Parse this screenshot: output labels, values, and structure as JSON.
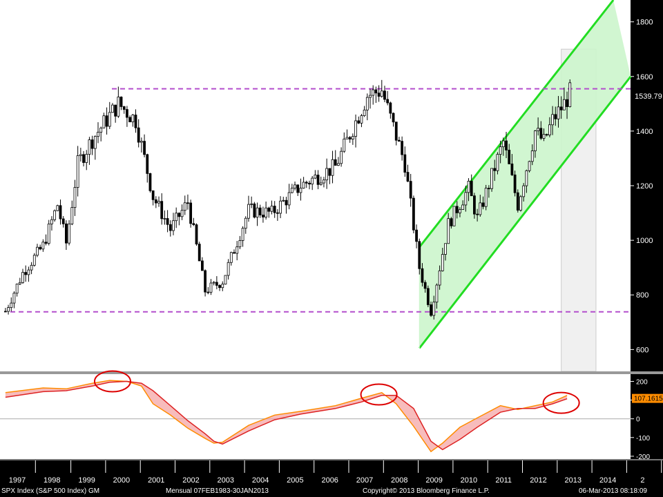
{
  "chart_data": [
    {
      "type": "candlestick",
      "frequency": "monthly",
      "series": [
        {
          "name": "",
          "ohlc_sketch": [
            {
              "date": "1996-12",
              "value": 740
            },
            {
              "date": "1997-06",
              "value": 880
            },
            {
              "date": "1998-01",
              "value": 980
            },
            {
              "date": "1998-06",
              "value": 1130
            },
            {
              "date": "1998-09",
              "value": 990
            },
            {
              "date": "1999-01",
              "value": 1280
            },
            {
              "date": "1999-06",
              "value": 1370
            },
            {
              "date": "2000-03",
              "value": 1500
            },
            {
              "date": "2000-09",
              "value": 1440
            },
            {
              "date": "2001-03",
              "value": 1160
            },
            {
              "date": "2001-09",
              "value": 1040
            },
            {
              "date": "2002-03",
              "value": 1140
            },
            {
              "date": "2002-09",
              "value": 815
            },
            {
              "date": "2003-03",
              "value": 850
            },
            {
              "date": "2003-12",
              "value": 1110
            },
            {
              "date": "2004-08",
              "value": 1100
            },
            {
              "date": "2005-06",
              "value": 1200
            },
            {
              "date": "2006-06",
              "value": 1270
            },
            {
              "date": "2007-05",
              "value": 1530
            },
            {
              "date": "2007-10",
              "value": 1550
            },
            {
              "date": "2008-06",
              "value": 1280
            },
            {
              "date": "2008-11",
              "value": 900
            },
            {
              "date": "2009-03",
              "value": 740
            },
            {
              "date": "2009-09",
              "value": 1060
            },
            {
              "date": "2010-04",
              "value": 1190
            },
            {
              "date": "2010-07",
              "value": 1080
            },
            {
              "date": "2011-04",
              "value": 1360
            },
            {
              "date": "2011-09",
              "value": 1130
            },
            {
              "date": "2012-03",
              "value": 1400
            },
            {
              "date": "2012-06",
              "value": 1360
            },
            {
              "date": "2012-09",
              "value": 1440
            },
            {
              "date": "2013-01",
              "value": 1500
            },
            {
              "date": "2013-03",
              "value": 1539.79
            }
          ]
        }
      ],
      "x_ticks": [
        "1997",
        "1998",
        "1999",
        "2000",
        "2001",
        "2002",
        "2003",
        "2004",
        "2005",
        "2006",
        "2007",
        "2008",
        "2009",
        "2010",
        "2011",
        "2012",
        "2013",
        "2014",
        "2"
      ],
      "y_ticks": [
        600,
        800,
        1000,
        1200,
        1400,
        1600,
        1800
      ],
      "ylim": [
        520,
        1880
      ],
      "last_value_label": "1539.79",
      "horizontal_lines": [
        {
          "y": 1555,
          "style": "dashed",
          "color": "#b34dcc"
        },
        {
          "y": 738,
          "style": "dashed",
          "color": "#b34dcc"
        }
      ],
      "channel": {
        "upper": [
          {
            "date": "2008-11",
            "value": 975
          },
          {
            "date": "2014-06",
            "value": 1880
          }
        ],
        "lower": [
          {
            "date": "2008-11",
            "value": 605
          },
          {
            "date": "2014-12",
            "value": 1600
          }
        ],
        "fill": "#ccf5cc",
        "line": "#22dd22"
      },
      "shaded_period": [
        "2012-12",
        "2013-12"
      ],
      "colors": {
        "candle": "#000000",
        "axis_text": "#ffffff"
      }
    },
    {
      "type": "line",
      "series": [
        {
          "name": "",
          "color": "#ff8c00",
          "points": [
            {
              "date": "1996-12",
              "value": 140
            },
            {
              "date": "1998-01",
              "value": 165
            },
            {
              "date": "1998-09",
              "value": 160
            },
            {
              "date": "1999-06",
              "value": 190
            },
            {
              "date": "1999-12",
              "value": 205
            },
            {
              "date": "2000-06",
              "value": 200
            },
            {
              "date": "2000-11",
              "value": 175
            },
            {
              "date": "2001-03",
              "value": 80
            },
            {
              "date": "2001-09",
              "value": 20
            },
            {
              "date": "2002-03",
              "value": -50
            },
            {
              "date": "2002-09",
              "value": -105
            },
            {
              "date": "2002-12",
              "value": -130
            },
            {
              "date": "2003-03",
              "value": -125
            },
            {
              "date": "2003-12",
              "value": -35
            },
            {
              "date": "2004-09",
              "value": 20
            },
            {
              "date": "2005-06",
              "value": 40
            },
            {
              "date": "2006-06",
              "value": 70
            },
            {
              "date": "2007-03",
              "value": 110
            },
            {
              "date": "2007-10",
              "value": 140
            },
            {
              "date": "2008-03",
              "value": 80
            },
            {
              "date": "2008-09",
              "value": -40
            },
            {
              "date": "2009-03",
              "value": -175
            },
            {
              "date": "2009-07",
              "value": -130
            },
            {
              "date": "2010-01",
              "value": -45
            },
            {
              "date": "2010-07",
              "value": 5
            },
            {
              "date": "2011-03",
              "value": 70
            },
            {
              "date": "2011-09",
              "value": 50
            },
            {
              "date": "2012-03",
              "value": 70
            },
            {
              "date": "2012-09",
              "value": 90
            },
            {
              "date": "2013-02",
              "value": 125
            }
          ]
        },
        {
          "name": "",
          "color": "#dd2222",
          "points": [
            {
              "date": "1996-12",
              "value": 115
            },
            {
              "date": "1998-01",
              "value": 145
            },
            {
              "date": "1998-09",
              "value": 150
            },
            {
              "date": "1999-06",
              "value": 175
            },
            {
              "date": "1999-12",
              "value": 195
            },
            {
              "date": "2000-06",
              "value": 200
            },
            {
              "date": "2000-11",
              "value": 190
            },
            {
              "date": "2001-03",
              "value": 150
            },
            {
              "date": "2001-09",
              "value": 70
            },
            {
              "date": "2002-03",
              "value": -10
            },
            {
              "date": "2002-09",
              "value": -80
            },
            {
              "date": "2002-12",
              "value": -120
            },
            {
              "date": "2003-03",
              "value": -135
            },
            {
              "date": "2003-12",
              "value": -65
            },
            {
              "date": "2004-09",
              "value": -5
            },
            {
              "date": "2005-06",
              "value": 25
            },
            {
              "date": "2006-06",
              "value": 55
            },
            {
              "date": "2007-03",
              "value": 90
            },
            {
              "date": "2007-10",
              "value": 125
            },
            {
              "date": "2008-03",
              "value": 125
            },
            {
              "date": "2008-09",
              "value": 55
            },
            {
              "date": "2009-03",
              "value": -120
            },
            {
              "date": "2009-07",
              "value": -165
            },
            {
              "date": "2010-01",
              "value": -110
            },
            {
              "date": "2010-07",
              "value": -45
            },
            {
              "date": "2011-03",
              "value": 35
            },
            {
              "date": "2011-09",
              "value": 55
            },
            {
              "date": "2012-03",
              "value": 55
            },
            {
              "date": "2012-09",
              "value": 80
            },
            {
              "date": "2013-02",
              "value": 107.1615
            }
          ]
        }
      ],
      "y_ticks": [
        200,
        100,
        0,
        -100,
        -200
      ],
      "ylim": [
        -215,
        235
      ],
      "zero_line": true,
      "last_value_label": "107.1615",
      "second_value_label": "",
      "highlight_circles": [
        {
          "date": "2000-01",
          "value": 200
        },
        {
          "date": "2007-09",
          "value": 130
        },
        {
          "date": "2012-12",
          "value": 85
        }
      ],
      "colors": {
        "circle": "#dd0000",
        "last_value_bg": "#ff8c00"
      }
    }
  ],
  "footer": {
    "security": "SPX Index (S&P 500 Index) GM",
    "period": "Mensual 07FEB1983-30JAN2013",
    "copyright": "Copyright© 2013 Bloomberg Finance L.P.",
    "timestamp": "06-Mar-2013 08:18:09"
  }
}
